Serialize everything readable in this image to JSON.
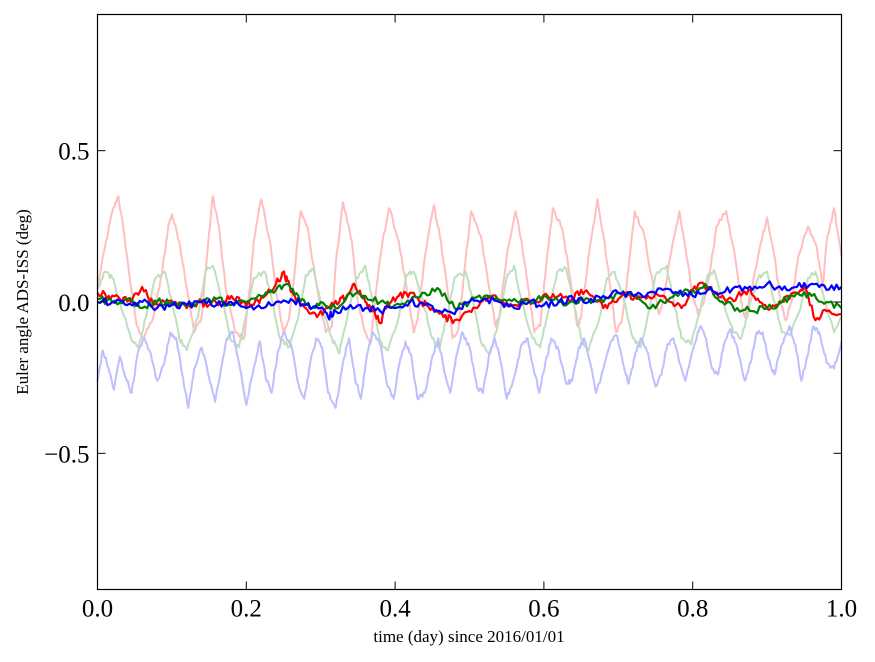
{
  "chart_data": {
    "type": "line",
    "title": "",
    "xlabel": "time (day) since 2016/01/01",
    "ylabel": "Euler angle ADS-ISS (deg)",
    "xlim": [
      0.0,
      1.0
    ],
    "ylim": [
      -0.95,
      0.95
    ],
    "xticks": [
      0.0,
      0.2,
      0.4,
      0.6,
      0.8,
      1.0
    ],
    "xtick_labels": [
      "0.0",
      "0.2",
      "0.4",
      "0.6",
      "0.8",
      "1.0"
    ],
    "yticks": [
      -0.5,
      0.0,
      0.5
    ],
    "ytick_labels": [
      "−0.5",
      "0.0",
      "0.5"
    ],
    "grid": false,
    "legend": "none",
    "series": [
      {
        "color": "#ffbfbf",
        "style": "faded",
        "x": [
          0.0,
          0.01,
          0.02,
          0.028,
          0.036,
          0.045,
          0.053,
          0.062,
          0.075,
          0.087,
          0.095,
          0.1,
          0.11,
          0.122,
          0.13,
          0.14,
          0.147,
          0.155,
          0.163,
          0.172,
          0.185,
          0.197,
          0.205,
          0.21,
          0.22,
          0.232,
          0.24,
          0.25,
          0.257,
          0.265,
          0.273,
          0.282,
          0.295,
          0.307,
          0.315,
          0.32,
          0.33,
          0.342,
          0.35,
          0.36,
          0.367,
          0.375,
          0.383,
          0.392,
          0.405,
          0.417,
          0.425,
          0.43,
          0.44,
          0.452,
          0.46,
          0.47,
          0.477,
          0.485,
          0.493,
          0.502,
          0.515,
          0.527,
          0.535,
          0.54,
          0.55,
          0.562,
          0.57,
          0.58,
          0.587,
          0.595,
          0.603,
          0.612,
          0.625,
          0.637,
          0.645,
          0.65,
          0.66,
          0.672,
          0.68,
          0.69,
          0.697,
          0.705,
          0.713,
          0.722,
          0.735,
          0.747,
          0.755,
          0.76,
          0.77,
          0.782,
          0.79,
          0.8,
          0.807,
          0.815,
          0.823,
          0.832,
          0.845,
          0.857,
          0.865,
          0.87,
          0.88,
          0.892,
          0.9,
          0.91,
          0.917,
          0.925,
          0.933,
          0.942,
          0.955,
          0.967,
          0.975,
          0.98,
          0.99,
          1.0
        ],
        "values": [
          0.05,
          0.18,
          0.3,
          0.35,
          0.22,
          0.05,
          -0.08,
          -0.12,
          -0.05,
          0.1,
          0.25,
          0.29,
          0.2,
          0.02,
          -0.1,
          -0.05,
          0.15,
          0.35,
          0.25,
          0.05,
          -0.1,
          -0.12,
          0.05,
          0.2,
          0.34,
          0.2,
          0.03,
          -0.1,
          -0.06,
          0.1,
          0.3,
          0.25,
          0.05,
          -0.1,
          -0.08,
          0.12,
          0.33,
          0.2,
          0.0,
          -0.1,
          -0.14,
          0.05,
          0.2,
          0.31,
          0.2,
          0.02,
          -0.1,
          -0.06,
          0.15,
          0.32,
          0.22,
          0.05,
          -0.12,
          -0.09,
          0.1,
          0.3,
          0.22,
          0.04,
          -0.08,
          -0.05,
          0.15,
          0.3,
          0.2,
          0.03,
          -0.1,
          -0.08,
          0.12,
          0.31,
          0.24,
          0.05,
          -0.08,
          -0.05,
          0.15,
          0.34,
          0.22,
          0.04,
          -0.1,
          -0.06,
          0.1,
          0.3,
          0.22,
          0.05,
          -0.04,
          0.0,
          0.15,
          0.3,
          0.18,
          0.02,
          -0.04,
          0.0,
          0.1,
          0.25,
          0.3,
          0.15,
          0.0,
          -0.05,
          0.05,
          0.2,
          0.28,
          0.15,
          0.02,
          -0.06,
          0.0,
          0.15,
          0.25,
          0.18,
          0.05,
          0.2,
          0.31,
          0.15
        ]
      },
      {
        "color": "#bfdfbf",
        "style": "faded",
        "x": [
          0.0,
          0.01,
          0.02,
          0.03,
          0.045,
          0.055,
          0.065,
          0.078,
          0.09,
          0.1,
          0.11,
          0.12,
          0.135,
          0.145,
          0.155,
          0.168,
          0.18,
          0.19,
          0.2,
          0.21,
          0.225,
          0.235,
          0.245,
          0.258,
          0.27,
          0.28,
          0.29,
          0.3,
          0.315,
          0.325,
          0.335,
          0.348,
          0.36,
          0.37,
          0.38,
          0.39,
          0.405,
          0.415,
          0.425,
          0.438,
          0.45,
          0.46,
          0.47,
          0.48,
          0.495,
          0.505,
          0.515,
          0.528,
          0.54,
          0.55,
          0.56,
          0.57,
          0.585,
          0.595,
          0.605,
          0.618,
          0.63,
          0.64,
          0.65,
          0.66,
          0.675,
          0.685,
          0.695,
          0.708,
          0.72,
          0.73,
          0.74,
          0.75,
          0.765,
          0.775,
          0.785,
          0.798,
          0.81,
          0.82,
          0.83,
          0.84,
          0.855,
          0.865,
          0.875,
          0.888,
          0.9,
          0.91,
          0.92,
          0.93,
          0.945,
          0.955,
          0.965,
          0.978,
          0.99,
          1.0
        ],
        "values": [
          0.04,
          0.1,
          0.08,
          0.0,
          -0.12,
          -0.15,
          -0.05,
          0.08,
          0.1,
          0.0,
          -0.12,
          -0.16,
          -0.05,
          0.1,
          0.12,
          0.0,
          -0.13,
          -0.15,
          -0.04,
          0.08,
          0.1,
          0.0,
          -0.12,
          -0.15,
          -0.05,
          0.09,
          0.11,
          0.0,
          -0.12,
          -0.17,
          -0.06,
          0.08,
          0.12,
          0.0,
          -0.13,
          -0.16,
          -0.05,
          0.09,
          0.1,
          0.0,
          -0.12,
          -0.15,
          -0.04,
          0.08,
          0.1,
          0.0,
          -0.13,
          -0.17,
          -0.05,
          0.08,
          0.12,
          0.0,
          -0.12,
          -0.15,
          -0.04,
          0.1,
          0.11,
          0.0,
          -0.12,
          -0.16,
          -0.05,
          0.08,
          0.1,
          0.0,
          -0.12,
          -0.15,
          -0.04,
          0.09,
          0.12,
          0.0,
          -0.12,
          -0.14,
          -0.03,
          0.09,
          0.1,
          0.0,
          -0.1,
          -0.12,
          -0.03,
          0.08,
          0.1,
          0.0,
          -0.1,
          -0.11,
          -0.02,
          0.08,
          0.1,
          0.0,
          -0.1,
          -0.05
        ]
      },
      {
        "color": "#bfbfff",
        "style": "faded",
        "x": [
          0.0,
          0.007,
          0.015,
          0.022,
          0.03,
          0.038,
          0.046,
          0.054,
          0.062,
          0.07,
          0.08,
          0.09,
          0.098,
          0.106,
          0.114,
          0.122,
          0.13,
          0.14,
          0.15,
          0.158,
          0.166,
          0.174,
          0.182,
          0.19,
          0.2,
          0.21,
          0.218,
          0.226,
          0.234,
          0.242,
          0.25,
          0.26,
          0.27,
          0.278,
          0.286,
          0.294,
          0.302,
          0.31,
          0.32,
          0.33,
          0.338,
          0.346,
          0.354,
          0.362,
          0.37,
          0.38,
          0.39,
          0.398,
          0.406,
          0.414,
          0.422,
          0.43,
          0.44,
          0.45,
          0.458,
          0.466,
          0.474,
          0.482,
          0.49,
          0.5,
          0.51,
          0.518,
          0.526,
          0.534,
          0.542,
          0.55,
          0.56,
          0.57,
          0.578,
          0.586,
          0.594,
          0.602,
          0.61,
          0.62,
          0.63,
          0.638,
          0.646,
          0.654,
          0.662,
          0.67,
          0.68,
          0.69,
          0.698,
          0.706,
          0.714,
          0.722,
          0.73,
          0.74,
          0.75,
          0.758,
          0.766,
          0.774,
          0.782,
          0.79,
          0.8,
          0.81,
          0.818,
          0.826,
          0.834,
          0.842,
          0.85,
          0.86,
          0.87,
          0.878,
          0.886,
          0.894,
          0.902,
          0.91,
          0.92,
          0.93,
          0.938,
          0.946,
          0.954,
          0.962,
          0.97,
          0.98,
          0.99,
          1.0
        ],
        "values": [
          -0.26,
          -0.16,
          -0.22,
          -0.29,
          -0.18,
          -0.25,
          -0.3,
          -0.17,
          -0.12,
          -0.16,
          -0.26,
          -0.2,
          -0.1,
          -0.12,
          -0.24,
          -0.35,
          -0.22,
          -0.15,
          -0.25,
          -0.33,
          -0.22,
          -0.12,
          -0.1,
          -0.2,
          -0.34,
          -0.22,
          -0.13,
          -0.25,
          -0.3,
          -0.17,
          -0.1,
          -0.14,
          -0.27,
          -0.32,
          -0.2,
          -0.12,
          -0.15,
          -0.3,
          -0.35,
          -0.2,
          -0.12,
          -0.25,
          -0.32,
          -0.18,
          -0.1,
          -0.14,
          -0.28,
          -0.32,
          -0.2,
          -0.13,
          -0.18,
          -0.32,
          -0.3,
          -0.18,
          -0.12,
          -0.23,
          -0.3,
          -0.18,
          -0.1,
          -0.15,
          -0.28,
          -0.3,
          -0.18,
          -0.12,
          -0.2,
          -0.32,
          -0.25,
          -0.14,
          -0.12,
          -0.22,
          -0.3,
          -0.2,
          -0.12,
          -0.16,
          -0.27,
          -0.26,
          -0.16,
          -0.12,
          -0.2,
          -0.3,
          -0.22,
          -0.13,
          -0.11,
          -0.2,
          -0.27,
          -0.18,
          -0.12,
          -0.17,
          -0.28,
          -0.24,
          -0.14,
          -0.12,
          -0.2,
          -0.26,
          -0.16,
          -0.08,
          -0.12,
          -0.22,
          -0.24,
          -0.14,
          -0.09,
          -0.15,
          -0.26,
          -0.2,
          -0.1,
          -0.1,
          -0.19,
          -0.24,
          -0.14,
          -0.08,
          -0.14,
          -0.26,
          -0.18,
          -0.08,
          -0.1,
          -0.2,
          -0.22,
          -0.13
        ]
      },
      {
        "color": "#ff0000",
        "style": "solid",
        "x": [
          0.0,
          0.015,
          0.03,
          0.045,
          0.06,
          0.075,
          0.09,
          0.105,
          0.12,
          0.135,
          0.15,
          0.165,
          0.18,
          0.195,
          0.21,
          0.225,
          0.24,
          0.25,
          0.255,
          0.265,
          0.28,
          0.295,
          0.31,
          0.325,
          0.335,
          0.345,
          0.36,
          0.37,
          0.38,
          0.39,
          0.405,
          0.42,
          0.435,
          0.45,
          0.465,
          0.48,
          0.5,
          0.515,
          0.53,
          0.545,
          0.56,
          0.575,
          0.59,
          0.605,
          0.62,
          0.635,
          0.65,
          0.665,
          0.68,
          0.695,
          0.71,
          0.725,
          0.74,
          0.755,
          0.77,
          0.785,
          0.8,
          0.815,
          0.83,
          0.845,
          0.86,
          0.875,
          0.89,
          0.905,
          0.92,
          0.935,
          0.95,
          0.965,
          0.98,
          1.0
        ],
        "values": [
          0.03,
          0.02,
          0.01,
          0.0,
          0.05,
          -0.01,
          0.0,
          0.0,
          -0.02,
          0.0,
          -0.01,
          0.0,
          0.02,
          0.0,
          -0.01,
          0.02,
          0.06,
          0.1,
          0.07,
          0.02,
          -0.02,
          -0.05,
          -0.02,
          0.0,
          0.02,
          0.06,
          0.0,
          -0.03,
          -0.07,
          0.0,
          0.02,
          0.03,
          0.0,
          -0.02,
          -0.05,
          -0.06,
          -0.03,
          0.0,
          0.02,
          0.0,
          -0.01,
          0.01,
          0.0,
          0.02,
          0.02,
          0.0,
          0.04,
          0.02,
          -0.02,
          0.0,
          0.03,
          0.01,
          0.02,
          0.02,
          0.0,
          -0.02,
          0.04,
          0.06,
          0.03,
          0.0,
          0.02,
          0.04,
          0.0,
          -0.02,
          0.0,
          0.03,
          0.05,
          -0.06,
          -0.03,
          -0.04
        ]
      },
      {
        "color": "#008000",
        "style": "solid",
        "x": [
          0.0,
          0.02,
          0.04,
          0.06,
          0.08,
          0.1,
          0.12,
          0.14,
          0.16,
          0.18,
          0.2,
          0.22,
          0.24,
          0.255,
          0.27,
          0.285,
          0.3,
          0.32,
          0.34,
          0.36,
          0.38,
          0.4,
          0.42,
          0.44,
          0.46,
          0.48,
          0.5,
          0.52,
          0.54,
          0.56,
          0.58,
          0.6,
          0.62,
          0.64,
          0.66,
          0.68,
          0.7,
          0.72,
          0.74,
          0.76,
          0.78,
          0.8,
          0.82,
          0.84,
          0.86,
          0.88,
          0.9,
          0.92,
          0.94,
          0.96,
          0.98,
          1.0
        ],
        "values": [
          0.01,
          0.0,
          0.01,
          -0.02,
          0.0,
          0.0,
          -0.01,
          0.0,
          0.01,
          -0.01,
          0.0,
          0.02,
          0.04,
          0.06,
          0.02,
          -0.02,
          0.0,
          -0.02,
          0.03,
          0.02,
          0.0,
          -0.01,
          0.0,
          0.03,
          0.04,
          -0.02,
          0.0,
          0.02,
          0.0,
          0.01,
          0.0,
          0.02,
          0.0,
          0.0,
          0.01,
          0.0,
          0.03,
          0.02,
          -0.02,
          0.0,
          0.02,
          0.04,
          0.05,
          0.0,
          -0.02,
          -0.03,
          -0.02,
          0.0,
          0.03,
          0.02,
          0.0,
          -0.02
        ]
      },
      {
        "color": "#0000ff",
        "style": "solid",
        "x": [
          0.0,
          0.02,
          0.04,
          0.06,
          0.08,
          0.1,
          0.12,
          0.14,
          0.16,
          0.18,
          0.2,
          0.22,
          0.24,
          0.26,
          0.28,
          0.3,
          0.31,
          0.32,
          0.34,
          0.36,
          0.38,
          0.4,
          0.42,
          0.44,
          0.46,
          0.48,
          0.5,
          0.52,
          0.54,
          0.56,
          0.58,
          0.6,
          0.62,
          0.64,
          0.66,
          0.68,
          0.7,
          0.72,
          0.74,
          0.76,
          0.78,
          0.8,
          0.82,
          0.84,
          0.86,
          0.88,
          0.9,
          0.92,
          0.94,
          0.96,
          0.98,
          1.0
        ],
        "values": [
          0.0,
          0.0,
          -0.01,
          0.0,
          -0.02,
          -0.01,
          -0.01,
          0.0,
          -0.01,
          0.0,
          -0.02,
          -0.02,
          0.0,
          0.01,
          -0.01,
          -0.02,
          -0.05,
          -0.03,
          -0.01,
          -0.02,
          -0.03,
          -0.02,
          0.0,
          -0.01,
          -0.03,
          -0.04,
          0.0,
          0.01,
          0.0,
          -0.02,
          0.0,
          -0.01,
          0.0,
          0.01,
          0.0,
          0.02,
          0.03,
          0.02,
          0.03,
          0.04,
          0.03,
          0.02,
          0.04,
          0.03,
          0.05,
          0.04,
          0.06,
          0.04,
          0.05,
          0.06,
          0.04,
          0.05
        ]
      }
    ]
  }
}
